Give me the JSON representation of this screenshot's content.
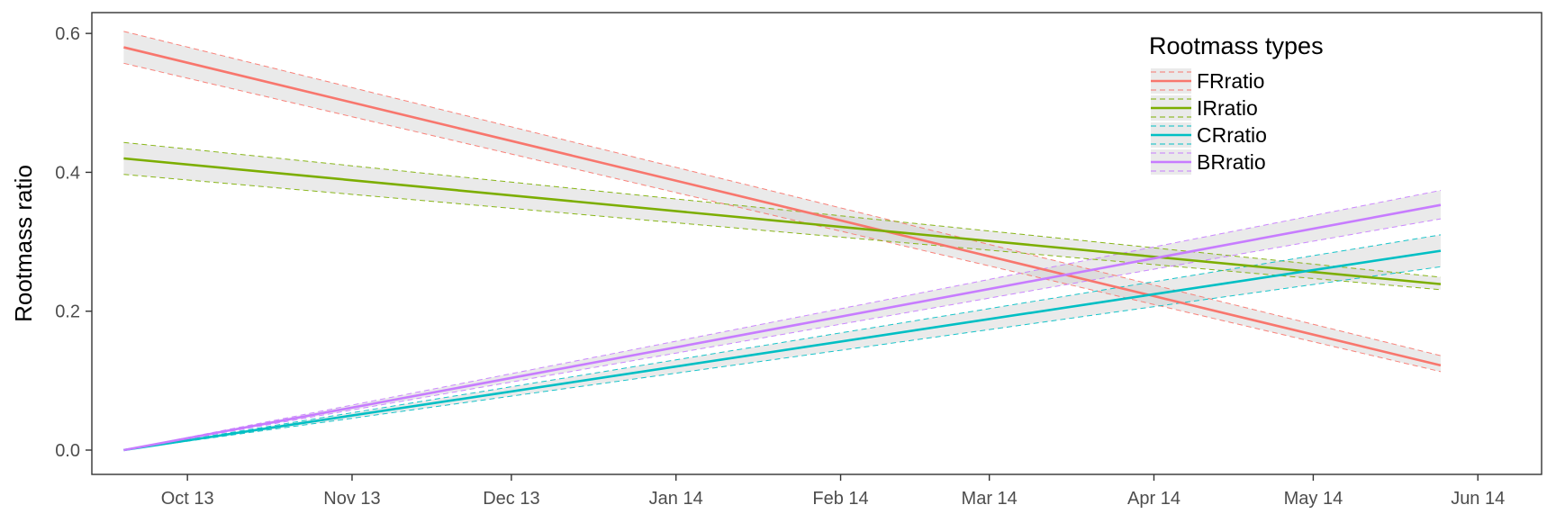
{
  "chart_data": {
    "type": "line",
    "title": "",
    "xlabel": "",
    "ylabel": "Rootmass ratio",
    "x_axis": {
      "type": "date",
      "range": [
        "2013-09-13",
        "2014-06-13"
      ],
      "ticks": [
        {
          "date": "2013-10-01",
          "label": "Oct 13"
        },
        {
          "date": "2013-11-01",
          "label": "Nov 13"
        },
        {
          "date": "2013-12-01",
          "label": "Dec 13"
        },
        {
          "date": "2014-01-01",
          "label": "Jan 14"
        },
        {
          "date": "2014-02-01",
          "label": "Feb 14"
        },
        {
          "date": "2014-03-01",
          "label": "Mar 14"
        },
        {
          "date": "2014-04-01",
          "label": "Apr 14"
        },
        {
          "date": "2014-05-01",
          "label": "May 14"
        },
        {
          "date": "2014-06-01",
          "label": "Jun 14"
        }
      ]
    },
    "y_axis": {
      "range": [
        -0.035,
        0.63
      ],
      "ticks": [
        {
          "value": 0.0,
          "label": "0.0"
        },
        {
          "value": 0.2,
          "label": "0.2"
        },
        {
          "value": 0.4,
          "label": "0.4"
        },
        {
          "value": 0.6,
          "label": "0.6"
        }
      ]
    },
    "grid": false,
    "legend": {
      "title": "Rootmass types",
      "position": "top-right, inside plot"
    },
    "confidence_band_fill": "#ebebeb",
    "series": [
      {
        "name": "FRratio",
        "color": "#F8766D",
        "x": [
          "2013-09-19",
          "2014-05-25"
        ],
        "y": [
          0.58,
          0.122
        ],
        "band_lower": [
          0.557,
          0.113
        ],
        "band_upper": [
          0.603,
          0.136
        ]
      },
      {
        "name": "IRratio",
        "color": "#7CAE00",
        "x": [
          "2013-09-19",
          "2014-05-25"
        ],
        "y": [
          0.42,
          0.239
        ],
        "band_lower": [
          0.397,
          0.231
        ],
        "band_upper": [
          0.443,
          0.249
        ]
      },
      {
        "name": "CRratio",
        "color": "#00BFC4",
        "x": [
          "2013-09-19",
          "2014-05-25"
        ],
        "y": [
          0.0,
          0.287
        ],
        "band_lower": [
          0.0,
          0.264
        ],
        "band_upper": [
          0.0,
          0.31
        ]
      },
      {
        "name": "BRratio",
        "color": "#C77CFF",
        "x": [
          "2013-09-19",
          "2014-05-25"
        ],
        "y": [
          0.0,
          0.353
        ],
        "band_lower": [
          0.0,
          0.333
        ],
        "band_upper": [
          0.0,
          0.374
        ]
      }
    ]
  }
}
